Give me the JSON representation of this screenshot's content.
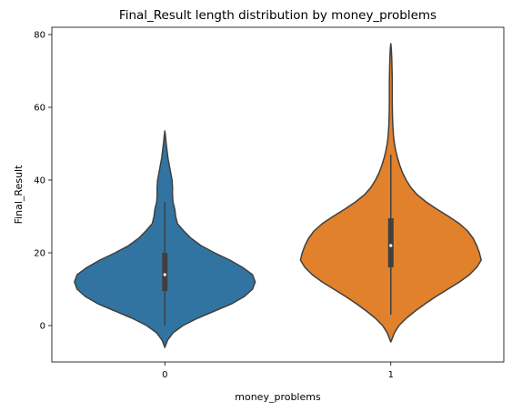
{
  "chart_data": {
    "type": "violin",
    "title": "Final_Result length distribution by money_problems",
    "xlabel": "money_problems",
    "ylabel": "Final_Result",
    "categories": [
      "0",
      "1"
    ],
    "ylim": [
      -10,
      82
    ],
    "yticks": [
      0,
      20,
      40,
      60,
      80
    ],
    "grid": false,
    "legend": "none",
    "violins": [
      {
        "category": "0",
        "color": "#3274a1",
        "median": 14,
        "q1": 9.5,
        "q3": 20,
        "whisker_low": 0,
        "whisker_high": 34,
        "density": [
          [
            -6,
            0.0
          ],
          [
            -4,
            0.03
          ],
          [
            -2,
            0.09
          ],
          [
            0,
            0.2
          ],
          [
            2,
            0.36
          ],
          [
            4,
            0.55
          ],
          [
            6,
            0.74
          ],
          [
            8,
            0.88
          ],
          [
            10,
            0.97
          ],
          [
            12,
            1.0
          ],
          [
            14,
            0.97
          ],
          [
            16,
            0.86
          ],
          [
            18,
            0.72
          ],
          [
            20,
            0.55
          ],
          [
            22,
            0.4
          ],
          [
            24,
            0.29
          ],
          [
            26,
            0.21
          ],
          [
            28,
            0.14
          ],
          [
            30,
            0.12
          ],
          [
            32,
            0.11
          ],
          [
            34,
            0.09
          ],
          [
            36,
            0.085
          ],
          [
            38,
            0.085
          ],
          [
            40,
            0.08
          ],
          [
            42,
            0.065
          ],
          [
            44,
            0.05
          ],
          [
            46,
            0.035
          ],
          [
            48,
            0.025
          ],
          [
            50,
            0.015
          ],
          [
            52,
            0.007
          ],
          [
            53.5,
            0.0
          ]
        ]
      },
      {
        "category": "1",
        "color": "#e1812c",
        "median": 22,
        "q1": 16,
        "q3": 29.5,
        "whisker_low": 3,
        "whisker_high": 47,
        "density": [
          [
            -4.5,
            0.0
          ],
          [
            -2,
            0.04
          ],
          [
            0,
            0.09
          ],
          [
            2,
            0.17
          ],
          [
            4,
            0.27
          ],
          [
            6,
            0.38
          ],
          [
            8,
            0.5
          ],
          [
            10,
            0.63
          ],
          [
            12,
            0.76
          ],
          [
            14,
            0.87
          ],
          [
            16,
            0.95
          ],
          [
            18,
            1.0
          ],
          [
            20,
            0.98
          ],
          [
            22,
            0.95
          ],
          [
            24,
            0.91
          ],
          [
            26,
            0.85
          ],
          [
            28,
            0.76
          ],
          [
            30,
            0.64
          ],
          [
            32,
            0.51
          ],
          [
            34,
            0.39
          ],
          [
            36,
            0.29
          ],
          [
            38,
            0.22
          ],
          [
            40,
            0.17
          ],
          [
            42,
            0.13
          ],
          [
            44,
            0.1
          ],
          [
            46,
            0.075
          ],
          [
            48,
            0.055
          ],
          [
            50,
            0.04
          ],
          [
            52,
            0.03
          ],
          [
            55,
            0.022
          ],
          [
            58,
            0.018
          ],
          [
            61,
            0.016
          ],
          [
            64,
            0.016
          ],
          [
            67,
            0.016
          ],
          [
            70,
            0.014
          ],
          [
            73,
            0.011
          ],
          [
            76,
            0.006
          ],
          [
            77.5,
            0.0
          ]
        ]
      }
    ]
  }
}
